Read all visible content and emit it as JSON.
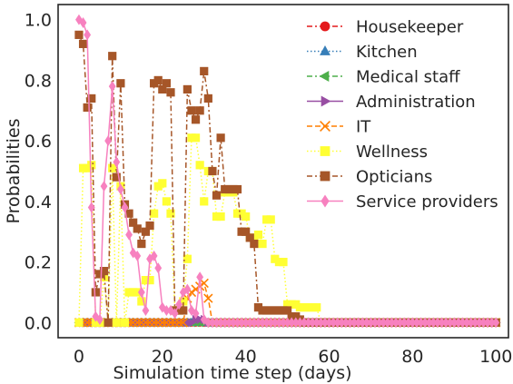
{
  "chart_data": {
    "type": "line",
    "xlabel": "Simulation time step (days)",
    "ylabel": "Probabilities",
    "xlim": [
      -5,
      103
    ],
    "ylim": [
      -0.05,
      1.05
    ],
    "xticks": [
      0,
      20,
      40,
      60,
      80,
      100
    ],
    "yticks": [
      0.0,
      0.2,
      0.4,
      0.6,
      0.8,
      1.0
    ],
    "grid": false,
    "legend_position": "top-right",
    "x_start": 0,
    "x_end": 100,
    "series": [
      {
        "name": "Housekeeper",
        "color": "#e41a1c",
        "marker": "circle",
        "dash": "6,3,2,3",
        "values": []
      },
      {
        "name": "Kitchen",
        "color": "#377eb8",
        "marker": "triangle-up",
        "dash": "1.5,2.5",
        "values": []
      },
      {
        "name": "Medical staff",
        "color": "#4daf4a",
        "marker": "triangle-left",
        "dash": "6,3,2,3",
        "values": []
      },
      {
        "name": "Administration",
        "color": "#984ea3",
        "marker": "triangle-right",
        "dash": "",
        "values": {
          "28": 0.01,
          "29": 0.01,
          "30": 0.01
        }
      },
      {
        "name": "IT",
        "color": "#ff7f00",
        "marker": "x",
        "dash": "6,3",
        "values": {
          "26": 0.08,
          "27": 0.1,
          "28": 0.11,
          "29": 0.12,
          "30": 0.13,
          "31": 0.08
        }
      },
      {
        "name": " Wellness",
        "color": "#ffff33",
        "marker": "square",
        "dash": "1.5,2.5",
        "values": {
          "1": 0.51,
          "2": 0.51,
          "3": 0.52,
          "6": 0.15,
          "8": 0.51,
          "10": 0.45,
          "12": 0.1,
          "13": 0.1,
          "14": 0.1,
          "15": 0.07,
          "16": 0.14,
          "17": 0.14,
          "18": 0.36,
          "19": 0.45,
          "20": 0.46,
          "21": 0.4,
          "22": 0.36,
          "23": 0.04,
          "24": 0.04,
          "25": 0.07,
          "26": 0.21,
          "27": 0.61,
          "28": 0.61,
          "29": 0.52,
          "30": 0.4,
          "31": 0.5,
          "32": 0.5,
          "33": 0.35,
          "34": 0.35,
          "35": 0.43,
          "36": 0.43,
          "37": 0.43,
          "38": 0.36,
          "39": 0.36,
          "40": 0.35,
          "41": 0.28,
          "42": 0.28,
          "43": 0.29,
          "44": 0.26,
          "45": 0.34,
          "46": 0.34,
          "47": 0.21,
          "48": 0.2,
          "49": 0.2,
          "50": 0.06,
          "51": 0.06,
          "52": 0.06,
          "53": 0.05,
          "54": 0.05,
          "55": 0.05,
          "56": 0.05,
          "57": 0.05
        }
      },
      {
        "name": "Opticians",
        "color": "#a65628",
        "marker": "square",
        "dash": "6,3,2,3",
        "values": {
          "0": 0.95,
          "1": 0.92,
          "2": 0.71,
          "3": 0.74,
          "4": 0.1,
          "5": 0.16,
          "6": 0.17,
          "8": 0.88,
          "9": 0.48,
          "10": 0.79,
          "11": 0.39,
          "12": 0.36,
          "13": 0.33,
          "14": 0.31,
          "15": 0.26,
          "16": 0.3,
          "17": 0.32,
          "18": 0.79,
          "19": 0.8,
          "20": 0.77,
          "21": 0.79,
          "22": 0.76,
          "23": 0.04,
          "24": 0.04,
          "25": 0.04,
          "26": 0.77,
          "27": 0.7,
          "28": 0.67,
          "29": 0.7,
          "30": 0.83,
          "31": 0.74,
          "32": 0.5,
          "33": 0.42,
          "34": 0.61,
          "35": 0.44,
          "36": 0.44,
          "37": 0.44,
          "38": 0.44,
          "39": 0.3,
          "40": 0.3,
          "41": 0.28,
          "42": 0.26,
          "43": 0.05,
          "44": 0.04,
          "45": 0.04,
          "46": 0.04,
          "47": 0.04,
          "48": 0.04,
          "49": 0.04,
          "50": 0.04,
          "51": 0.02,
          "52": 0.02,
          "53": 0.01
        }
      },
      {
        "name": "Service providers",
        "color": "#f781bf",
        "marker": "thin-diamond",
        "dash": "",
        "values": {
          "0": 1.0,
          "1": 0.99,
          "2": 0.95,
          "3": 0.38,
          "4": 0.02,
          "5": 0.01,
          "6": 0.45,
          "7": 0.6,
          "8": 0.78,
          "9": 0.53,
          "10": 0.44,
          "11": 0.38,
          "12": 0.29,
          "13": 0.23,
          "14": 0.22,
          "15": 0.1,
          "16": 0.04,
          "17": 0.21,
          "18": 0.22,
          "19": 0.18,
          "20": 0.05,
          "21": 0.04,
          "22": 0.04,
          "23": 0.03,
          "24": 0.06,
          "25": 0.1,
          "26": 0.11,
          "27": 0.04,
          "28": 0.03,
          "29": 0.15,
          "30": 0.01
        }
      }
    ]
  }
}
